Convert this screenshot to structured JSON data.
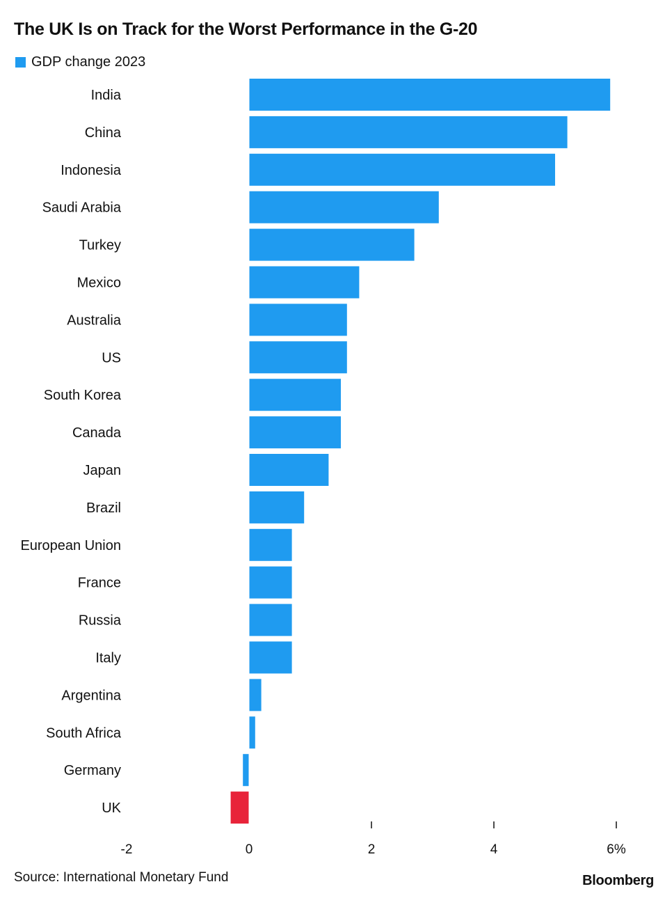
{
  "chart_data": {
    "type": "bar",
    "orientation": "horizontal",
    "title": "The UK Is on Track for the Worst Performance in the G-20",
    "series": [
      {
        "name": "GDP change 2023",
        "color": "#1f9bf0",
        "values": [
          5.9,
          5.2,
          5.0,
          3.1,
          2.7,
          1.8,
          1.6,
          1.6,
          1.5,
          1.5,
          1.3,
          0.9,
          0.7,
          0.7,
          0.7,
          0.7,
          0.2,
          0.1,
          -0.1,
          -0.3
        ]
      }
    ],
    "categories": [
      "India",
      "China",
      "Indonesia",
      "Saudi Arabia",
      "Turkey",
      "Mexico",
      "Australia",
      "US",
      "South Korea",
      "Canada",
      "Japan",
      "Brazil",
      "European Union",
      "France",
      "Russia",
      "Italy",
      "Argentina",
      "South Africa",
      "Germany",
      "UK"
    ],
    "highlight": {
      "category": "UK",
      "color": "#e8233a"
    },
    "xlim": [
      -2,
      6
    ],
    "x_ticks": [
      {
        "value": -2,
        "label": "-2"
      },
      {
        "value": 0,
        "label": "0"
      },
      {
        "value": 2,
        "label": "2"
      },
      {
        "value": 4,
        "label": "4"
      },
      {
        "value": 6,
        "label": "6%"
      }
    ],
    "grid": false,
    "legend_position": "top-left"
  },
  "source": "Source: International Monetary Fund",
  "brand": "Bloomberg"
}
